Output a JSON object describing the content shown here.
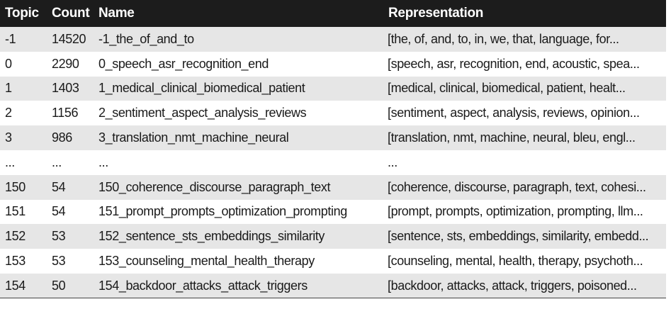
{
  "table": {
    "headers": [
      "Topic",
      "Count",
      "Name",
      "Representation"
    ],
    "rows": [
      {
        "topic": "-1",
        "count": "14520",
        "name": "-1_the_of_and_to",
        "representation": "[the, of, and, to, in, we, that, language, for..."
      },
      {
        "topic": "0",
        "count": "2290",
        "name": "0_speech_asr_recognition_end",
        "representation": "[speech, asr, recognition, end, acoustic, spea..."
      },
      {
        "topic": "1",
        "count": "1403",
        "name": "1_medical_clinical_biomedical_patient",
        "representation": "[medical, clinical, biomedical, patient, healt..."
      },
      {
        "topic": "2",
        "count": "1156",
        "name": "2_sentiment_aspect_analysis_reviews",
        "representation": "[sentiment, aspect, analysis, reviews, opinion..."
      },
      {
        "topic": "3",
        "count": "986",
        "name": "3_translation_nmt_machine_neural",
        "representation": "[translation, nmt, machine, neural, bleu, engl..."
      },
      {
        "topic": "...",
        "count": "...",
        "name": "...",
        "representation": "..."
      },
      {
        "topic": "150",
        "count": "54",
        "name": "150_coherence_discourse_paragraph_text",
        "representation": "[coherence, discourse, paragraph, text, cohesi..."
      },
      {
        "topic": "151",
        "count": "54",
        "name": "151_prompt_prompts_optimization_prompting",
        "representation": "[prompt, prompts, optimization, prompting, llm..."
      },
      {
        "topic": "152",
        "count": "53",
        "name": "152_sentence_sts_embeddings_similarity",
        "representation": "[sentence, sts, embeddings, similarity, embedd..."
      },
      {
        "topic": "153",
        "count": "53",
        "name": "153_counseling_mental_health_therapy",
        "representation": "[counseling, mental, health, therapy, psychoth..."
      },
      {
        "topic": "154",
        "count": "50",
        "name": "154_backdoor_attacks_attack_triggers",
        "representation": "[backdoor, attacks, attack, triggers, poisoned..."
      }
    ]
  }
}
